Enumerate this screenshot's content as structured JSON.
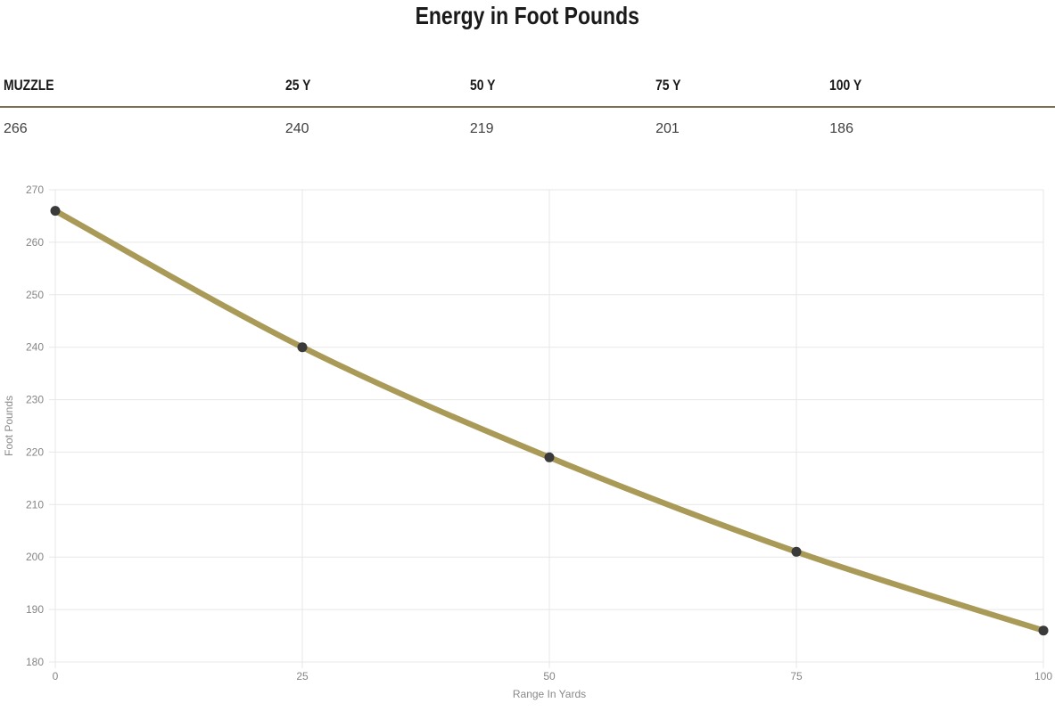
{
  "page": {
    "title": "Energy in Foot Pounds"
  },
  "table": {
    "headers": [
      "MUZZLE",
      "25 Y",
      "50 Y",
      "75 Y",
      "100 Y"
    ],
    "values": [
      "266",
      "240",
      "219",
      "201",
      "186"
    ]
  },
  "chart_data": {
    "type": "line",
    "x": [
      0,
      25,
      50,
      75,
      100
    ],
    "values": [
      266,
      240,
      219,
      201,
      186
    ],
    "series_name": "Energy in Foot Pounds",
    "title": "",
    "xlabel": "Range In Yards",
    "ylabel": "Foot Pounds",
    "xlim": [
      0,
      100
    ],
    "ylim": [
      180,
      270
    ],
    "xticks": [
      0,
      25,
      50,
      75,
      100
    ],
    "yticks": [
      180,
      190,
      200,
      210,
      220,
      230,
      240,
      250,
      260,
      270
    ],
    "grid": true,
    "legend_position": "none",
    "line_color": "#aa9a58",
    "point_color": "#3a3a3a",
    "grid_color": "#e7e7e7",
    "tick_label_color": "#858585",
    "axis_title_color": "#8a8a8a"
  },
  "colors": {
    "header_rule": "#7c6e4f",
    "title_text": "#1a1a1a",
    "value_text": "#3f3f3f",
    "background": "#ffffff"
  }
}
